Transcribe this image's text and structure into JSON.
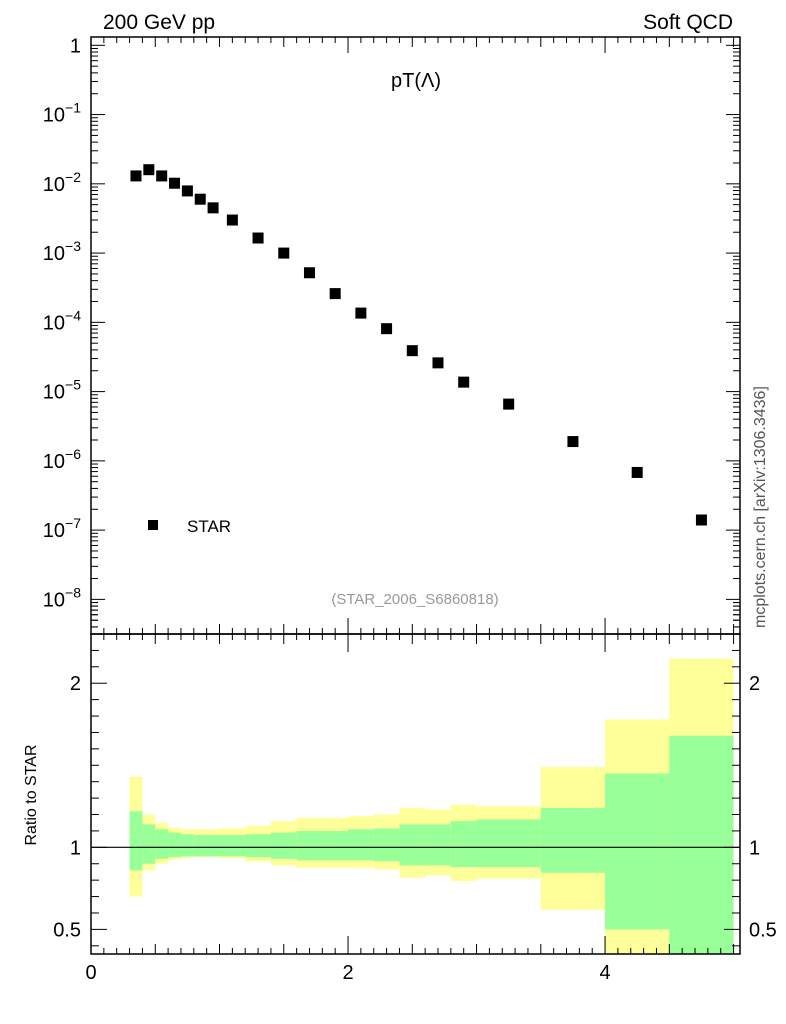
{
  "header": {
    "left": "200 GeV pp",
    "right": "Soft QCD"
  },
  "side_label": "mcplots.cern.ch [arXiv:1306.3436]",
  "chart_data": [
    {
      "type": "scatter",
      "title": "pT(Λ)",
      "analysis_tag": "(STAR_2006_S6860818)",
      "xlim": [
        0,
        5.05
      ],
      "ylim_log10": [
        -8.5,
        0.12
      ],
      "yscale": "log",
      "y_ticks": [
        {
          "base": "1",
          "exp": ""
        },
        {
          "base": "10",
          "exp": "−1"
        },
        {
          "base": "10",
          "exp": "−2"
        },
        {
          "base": "10",
          "exp": "−3"
        },
        {
          "base": "10",
          "exp": "−4"
        },
        {
          "base": "10",
          "exp": "−5"
        },
        {
          "base": "10",
          "exp": "−6"
        },
        {
          "base": "10",
          "exp": "−7"
        },
        {
          "base": "10",
          "exp": "−8"
        }
      ],
      "legend": {
        "label": "STAR",
        "placement": "bottom-left"
      },
      "series": [
        {
          "name": "STAR",
          "x": [
            0.35,
            0.45,
            0.55,
            0.65,
            0.75,
            0.85,
            0.95,
            1.1,
            1.3,
            1.5,
            1.7,
            1.9,
            2.1,
            2.3,
            2.5,
            2.7,
            2.9,
            3.25,
            3.75,
            4.25,
            4.75
          ],
          "y": [
            0.013,
            0.016,
            0.013,
            0.0102,
            0.0079,
            0.006,
            0.0045,
            0.003,
            0.00165,
            0.001,
            0.00052,
            0.00026,
            0.000136,
            8.1e-05,
            3.9e-05,
            2.6e-05,
            1.37e-05,
            6.6e-06,
            1.9e-06,
            6.8e-07,
            1.4e-07
          ]
        }
      ]
    },
    {
      "type": "area",
      "ylabel": "Ratio to STAR",
      "xlim": [
        0,
        5.05
      ],
      "ylim": [
        0.35,
        2.3
      ],
      "x_ticks": [
        "0",
        "2",
        "4"
      ],
      "y_ticks": [
        "0.5",
        "1",
        "2"
      ],
      "reference": 1,
      "bin_edges": [
        0.3,
        0.4,
        0.5,
        0.6,
        0.7,
        0.8,
        0.9,
        1.0,
        1.2,
        1.4,
        1.6,
        1.8,
        2.0,
        2.2,
        2.4,
        2.6,
        2.8,
        3.0,
        3.5,
        4.0,
        4.5,
        5.0
      ],
      "stat_band": {
        "color": "#99ff99",
        "lo": [
          0.86,
          0.9,
          0.93,
          0.94,
          0.945,
          0.945,
          0.945,
          0.945,
          0.94,
          0.93,
          0.92,
          0.92,
          0.92,
          0.915,
          0.89,
          0.89,
          0.88,
          0.88,
          0.845,
          0.5,
          0.25
        ],
        "hi": [
          1.22,
          1.14,
          1.11,
          1.09,
          1.08,
          1.075,
          1.075,
          1.075,
          1.08,
          1.09,
          1.1,
          1.1,
          1.11,
          1.115,
          1.14,
          1.14,
          1.16,
          1.17,
          1.24,
          1.45,
          1.68
        ]
      },
      "syst_band": {
        "color": "#ffff99",
        "lo": [
          0.7,
          0.86,
          0.9,
          0.925,
          0.935,
          0.94,
          0.94,
          0.935,
          0.915,
          0.89,
          0.875,
          0.875,
          0.875,
          0.865,
          0.815,
          0.83,
          0.795,
          0.81,
          0.62,
          0.2,
          0.2
        ],
        "hi": [
          1.43,
          1.2,
          1.15,
          1.12,
          1.11,
          1.11,
          1.11,
          1.115,
          1.13,
          1.16,
          1.18,
          1.18,
          1.19,
          1.2,
          1.24,
          1.23,
          1.26,
          1.25,
          1.49,
          1.78,
          2.15
        ]
      }
    }
  ]
}
